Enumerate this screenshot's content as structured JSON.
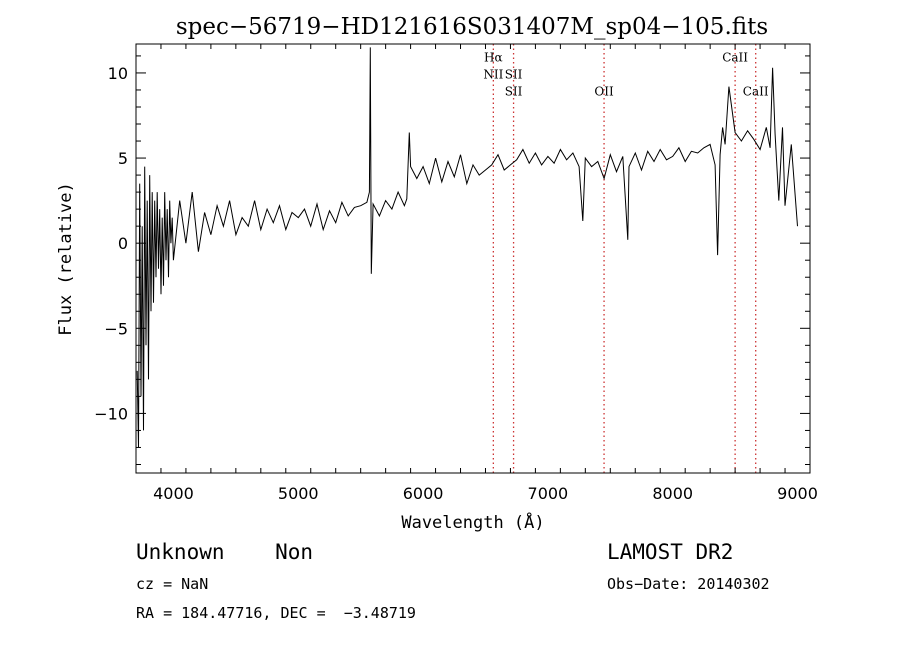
{
  "chart_data": {
    "type": "line",
    "title": "spec−56719−HD121616S031407M_sp04−105.fits",
    "xlabel": "Wavelength (Å)",
    "ylabel": "Flux (relative)",
    "xlim": [
      3700,
      9100
    ],
    "ylim": [
      -13.5,
      11.7
    ],
    "xticks": [
      4000,
      5000,
      6000,
      7000,
      8000,
      9000
    ],
    "xtick_labels": [
      "4000",
      "5000",
      "6000",
      "7000",
      "8000",
      "9000"
    ],
    "yticks": [
      -10,
      -5,
      0,
      5,
      10
    ],
    "ytick_labels": [
      "−10",
      "−5",
      "0",
      "5",
      "10"
    ],
    "grid": false,
    "line_color": "#000000",
    "marker_color": "#cc3333",
    "line_markers": [
      {
        "x": 6563,
        "label": "Hα",
        "label_y": 10.9
      },
      {
        "x": 6563,
        "label": "NII",
        "label_y": 9.9
      },
      {
        "x": 6725,
        "label": "SII",
        "label_y": 9.9
      },
      {
        "x": 6725,
        "label": "SII",
        "label_y": 8.9
      },
      {
        "x": 7450,
        "label": "OII",
        "label_y": 8.9
      },
      {
        "x": 8500,
        "label": "CaII",
        "label_y": 10.9
      },
      {
        "x": 8665,
        "label": "CaII",
        "label_y": 8.9
      }
    ],
    "series": [
      {
        "x": [
          3710,
          3720,
          3730,
          3740,
          3750,
          3760,
          3770,
          3780,
          3790,
          3800,
          3810,
          3820,
          3830,
          3840,
          3850,
          3860,
          3870,
          3880,
          3890,
          3900,
          3910,
          3920,
          3930,
          3940,
          3950,
          3960,
          3970,
          3980,
          3990,
          4000,
          4050,
          4100,
          4150,
          4200,
          4250,
          4300,
          4350,
          4400,
          4450,
          4500,
          4550,
          4600,
          4650,
          4700,
          4750,
          4800,
          4850,
          4900,
          4950,
          5000,
          5050,
          5100,
          5150,
          5200,
          5250,
          5300,
          5350,
          5400,
          5450,
          5500,
          5550,
          5570,
          5577,
          5585,
          5600,
          5650,
          5700,
          5750,
          5800,
          5850,
          5870,
          5890,
          5900,
          5950,
          6000,
          6050,
          6100,
          6150,
          6200,
          6250,
          6300,
          6350,
          6400,
          6450,
          6500,
          6550,
          6600,
          6650,
          6700,
          6750,
          6800,
          6850,
          6900,
          6950,
          7000,
          7050,
          7100,
          7150,
          7200,
          7250,
          7280,
          7300,
          7350,
          7400,
          7450,
          7500,
          7550,
          7600,
          7640,
          7650,
          7700,
          7750,
          7800,
          7850,
          7900,
          7950,
          8000,
          8050,
          8100,
          8150,
          8200,
          8250,
          8300,
          8340,
          8360,
          8380,
          8400,
          8420,
          8450,
          8500,
          8550,
          8600,
          8650,
          8700,
          8750,
          8780,
          8800,
          8820,
          8850,
          8880,
          8900,
          8950,
          9000
        ],
        "values": [
          -7.5,
          -12,
          3.5,
          -9,
          1,
          -11,
          4.5,
          -6,
          2.5,
          -8,
          4,
          -4,
          3,
          -3.5,
          2.5,
          -2,
          3,
          -1.5,
          2,
          -3,
          1.5,
          -2.5,
          3,
          -1,
          2,
          -2,
          2.5,
          0,
          1.5,
          -1,
          2.5,
          0,
          3,
          -0.5,
          1.8,
          0.5,
          2.2,
          1,
          2.5,
          0.5,
          1.5,
          1,
          2.5,
          0.8,
          2,
          1.2,
          2.2,
          0.8,
          1.8,
          1.5,
          2,
          1,
          2.3,
          0.8,
          1.9,
          1.2,
          2.4,
          1.6,
          2.1,
          2.2,
          2.4,
          3,
          11.5,
          -1.8,
          2.3,
          1.6,
          2.5,
          2,
          3,
          2.2,
          2.6,
          6.5,
          4.5,
          3.8,
          4.5,
          3.5,
          5,
          3.6,
          4.8,
          3.9,
          5.2,
          3.5,
          4.6,
          4,
          4.3,
          4.6,
          5.2,
          4.3,
          4.6,
          4.9,
          5.5,
          4.7,
          5.3,
          4.6,
          5.1,
          4.7,
          5.5,
          4.9,
          5.3,
          4.5,
          1.3,
          5,
          4.5,
          4.8,
          3.8,
          5.2,
          4.2,
          5.1,
          0.2,
          4.5,
          5.3,
          4.3,
          5.4,
          4.8,
          5.5,
          4.9,
          5.1,
          5.6,
          4.8,
          5.4,
          5.3,
          5.6,
          5.8,
          4.6,
          -0.7,
          5.2,
          6.8,
          5.8,
          9.2,
          6.5,
          6,
          6.6,
          6.1,
          5.5,
          6.8,
          5.6,
          10.3,
          6.4,
          2.5,
          6.8,
          2.2,
          5.8,
          1
        ]
      }
    ]
  },
  "info": {
    "class_label": "Unknown    Non",
    "cz_label": "cz = NaN",
    "coords_label": "RA = 184.47716, DEC =  −3.48719",
    "survey_label": "LAMOST DR2",
    "obs_date_label": "Obs−Date: 20140302"
  }
}
